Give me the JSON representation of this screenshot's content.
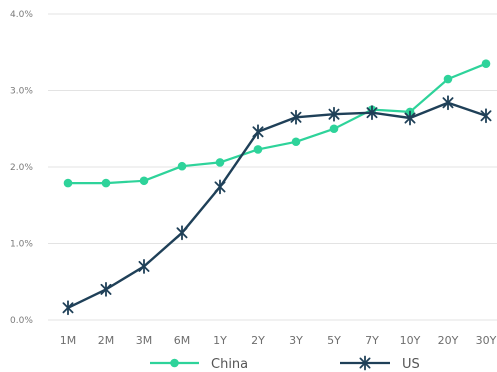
{
  "chart_data": {
    "type": "line",
    "title": "",
    "xlabel": "",
    "ylabel": "",
    "categories": [
      "1M",
      "2M",
      "3M",
      "6M",
      "1Y",
      "2Y",
      "3Y",
      "5Y",
      "7Y",
      "10Y",
      "20Y",
      "30Y"
    ],
    "y_ticks": [
      "0.0%",
      "1.0%",
      "2.0%",
      "3.0%",
      "4.0%"
    ],
    "ylim": [
      0,
      4.0
    ],
    "y_unit": "%",
    "grid": "horizontal",
    "legend": "bottom-center",
    "series": [
      {
        "name": "China",
        "color": "#2ed39a",
        "marker": "circle",
        "values": [
          1.79,
          1.79,
          1.82,
          2.01,
          2.06,
          2.23,
          2.33,
          2.5,
          2.75,
          2.72,
          3.15,
          3.35
        ]
      },
      {
        "name": "US",
        "color": "#1f4058",
        "marker": "star",
        "values": [
          0.16,
          0.4,
          0.7,
          1.14,
          1.74,
          2.46,
          2.65,
          2.69,
          2.71,
          2.64,
          2.84,
          2.67
        ]
      }
    ]
  }
}
